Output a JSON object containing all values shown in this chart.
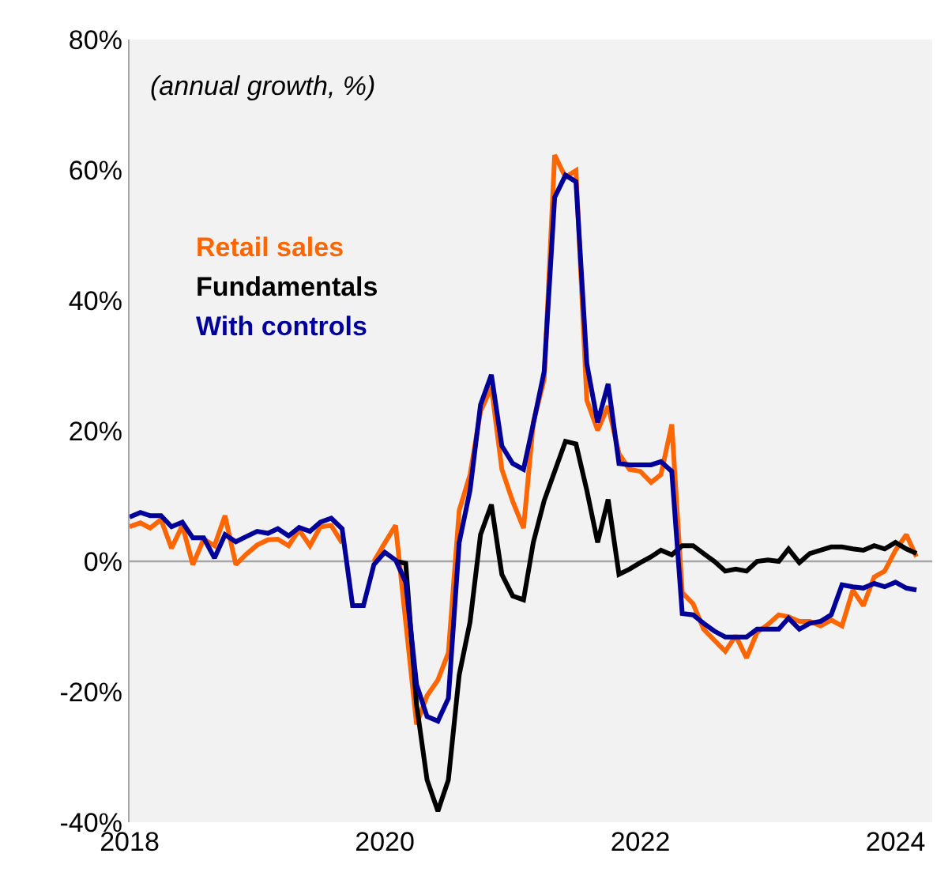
{
  "chart_data": {
    "type": "line",
    "annotations": [
      "(annual growth, %)"
    ],
    "x": [
      "2018-01",
      "2018-02",
      "2018-03",
      "2018-04",
      "2018-05",
      "2018-06",
      "2018-07",
      "2018-08",
      "2018-09",
      "2018-10",
      "2018-11",
      "2018-12",
      "2019-01",
      "2019-02",
      "2019-03",
      "2019-04",
      "2019-05",
      "2019-06",
      "2019-07",
      "2019-08",
      "2019-09",
      "2019-10",
      "2019-11",
      "2019-12",
      "2020-01",
      "2020-02",
      "2020-03",
      "2020-04",
      "2020-05",
      "2020-06",
      "2020-07",
      "2020-08",
      "2020-09",
      "2020-10",
      "2020-11",
      "2020-12",
      "2021-01",
      "2021-02",
      "2021-03",
      "2021-04",
      "2021-05",
      "2021-06",
      "2021-07",
      "2021-08",
      "2021-09",
      "2021-10",
      "2021-11",
      "2021-12",
      "2022-01",
      "2022-02",
      "2022-03",
      "2022-04",
      "2022-05",
      "2022-06",
      "2022-07",
      "2022-08",
      "2022-09",
      "2022-10",
      "2022-11",
      "2022-12",
      "2023-01",
      "2023-02",
      "2023-03",
      "2023-04",
      "2023-05",
      "2023-06",
      "2023-07",
      "2023-08",
      "2023-09",
      "2023-10",
      "2023-11",
      "2023-12",
      "2024-01",
      "2024-02",
      "2024-03"
    ],
    "xlim": [
      "2018-01-01",
      "2024-04-15"
    ],
    "xticks": [
      {
        "value": "2018-01-01",
        "label": "2018"
      },
      {
        "value": "2020-01-01",
        "label": "2020"
      },
      {
        "value": "2022-01-01",
        "label": "2022"
      },
      {
        "value": "2024-01-01",
        "label": "2024"
      }
    ],
    "ylim": [
      -40,
      80
    ],
    "yticks": [
      {
        "value": -40,
        "label": "-40%"
      },
      {
        "value": -20,
        "label": "-20%"
      },
      {
        "value": 0,
        "label": "0%"
      },
      {
        "value": 20,
        "label": "20%"
      },
      {
        "value": 40,
        "label": "40%"
      },
      {
        "value": 60,
        "label": "60%"
      },
      {
        "value": 80,
        "label": "80%"
      }
    ],
    "grid": false,
    "legend": false,
    "marker": "none",
    "line_style": "solid",
    "ref_lines": [
      {
        "axis": "y",
        "value": 0,
        "label": null,
        "color": "#a6a6a6"
      }
    ],
    "series": [
      {
        "name": "Retail sales",
        "color": "#ff6600",
        "values": [
          5.3,
          5.9,
          5.1,
          6.4,
          2.0,
          5.5,
          -0.5,
          3.4,
          2.4,
          7.0,
          -0.5,
          1.1,
          2.5,
          3.3,
          3.4,
          2.4,
          4.8,
          2.4,
          5.3,
          5.5,
          2.8,
          null,
          null,
          0,
          2.8,
          5.5,
          -9.3,
          -25,
          -20.6,
          -18.2,
          -14,
          7.8,
          13.3,
          23,
          26.7,
          14.1,
          9.2,
          5.1,
          21.3,
          27.9,
          62.3,
          58.9,
          59.9,
          24.7,
          20.1,
          23.8,
          16.5,
          14.1,
          13.8,
          12.1,
          13.3,
          21,
          -4.8,
          -6.5,
          -10.4,
          -12.1,
          -13.8,
          -11.4,
          -14.8,
          -10.9,
          -9.7,
          -8.2,
          -8.5,
          -9.2,
          -9.2,
          -9.9,
          -9,
          -9.9,
          -4.4,
          -6.8,
          -2.4,
          -1.5,
          1.7,
          4.1,
          0.7
        ]
      },
      {
        "name": "Fundamentals",
        "color": "#000000",
        "values": [
          null,
          null,
          null,
          null,
          null,
          null,
          null,
          null,
          null,
          null,
          null,
          null,
          null,
          null,
          null,
          null,
          null,
          null,
          null,
          null,
          null,
          null,
          null,
          null,
          null,
          0,
          -0.3,
          -22,
          -33.5,
          -38.3,
          -33.5,
          -17.4,
          -9.3,
          4.1,
          8.7,
          -2,
          -5.3,
          -5.9,
          2.9,
          9.3,
          13.8,
          18.4,
          18,
          10.9,
          2.9,
          9.5,
          -2,
          -1.2,
          -0.2,
          0.7,
          1.7,
          1,
          2.4,
          2.4,
          1.2,
          0,
          -1.5,
          -1.2,
          -1.5,
          0,
          0.2,
          0,
          1.9,
          -0.2,
          1.2,
          1.7,
          2.2,
          2.2,
          1.9,
          1.7,
          2.4,
          1.9,
          2.9,
          1.9,
          1.2
        ]
      },
      {
        "name": "With controls",
        "color": "#000099",
        "values": [
          6.8,
          7.5,
          7,
          7,
          5.3,
          6,
          3.6,
          3.6,
          0.5,
          4.1,
          3,
          3.8,
          4.6,
          4.3,
          5,
          3.9,
          5.2,
          4.6,
          6,
          6.6,
          5,
          -6.8,
          -6.8,
          -0.5,
          1.4,
          0.2,
          -3.2,
          -18.9,
          -23.8,
          -24.5,
          -21,
          2.9,
          10.9,
          24,
          28.6,
          17.7,
          15,
          14.1,
          21.1,
          29.1,
          55.8,
          59.2,
          58.2,
          30.3,
          21.3,
          27.2,
          15,
          14.8,
          14.8,
          14.8,
          15.3,
          13.8,
          -8,
          -8.2,
          -9.5,
          -10.7,
          -11.6,
          -11.6,
          -11.6,
          -10.4,
          -10.4,
          -10.4,
          -8.7,
          -10.4,
          -9.5,
          -9.2,
          -8.2,
          -3.6,
          -3.9,
          -4.1,
          -3.4,
          -3.9,
          -3.2,
          -4.1,
          -4.4
        ]
      }
    ]
  }
}
